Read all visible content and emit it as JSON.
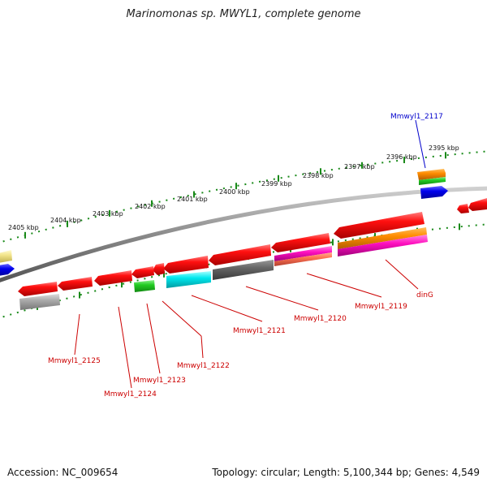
{
  "title": "Marinomonas sp. MWYL1, complete genome",
  "footer": {
    "accession": "Accession: NC_009654",
    "summary": "Topology: circular; Length: 5,100,344 bp; Genes: 4,549"
  },
  "colors": {
    "backbone": "#8a8a8a",
    "tick": "#1a8a1a",
    "label_red": "#cc0000",
    "label_blue": "#0000cc"
  },
  "kbp_labels": [
    "2405 kbp",
    "2404 kbp",
    "2403 kbp",
    "2402 kbp",
    "2401 kbp",
    "2400 kbp",
    "2399 kbp",
    "2398 kbp",
    "2397 kbp",
    "2396 kbp",
    "2395 kbp"
  ],
  "gene_labels": [
    {
      "id": "gl-2117",
      "text": "Mmwyl1_2117",
      "color": "blue"
    },
    {
      "id": "gl-ding",
      "text": "dinG",
      "color": "red"
    },
    {
      "id": "gl-2119",
      "text": "Mmwyl1_2119",
      "color": "red"
    },
    {
      "id": "gl-2120",
      "text": "Mmwyl1_2120",
      "color": "red"
    },
    {
      "id": "gl-2121",
      "text": "Mmwyl1_2121",
      "color": "red"
    },
    {
      "id": "gl-2122",
      "text": "Mmwyl1_2122",
      "color": "red"
    },
    {
      "id": "gl-2123",
      "text": "Mmwyl1_2123",
      "color": "red"
    },
    {
      "id": "gl-2124",
      "text": "Mmwyl1_2124",
      "color": "red"
    },
    {
      "id": "gl-2125",
      "text": "Mmwyl1_2125",
      "color": "red"
    }
  ]
}
